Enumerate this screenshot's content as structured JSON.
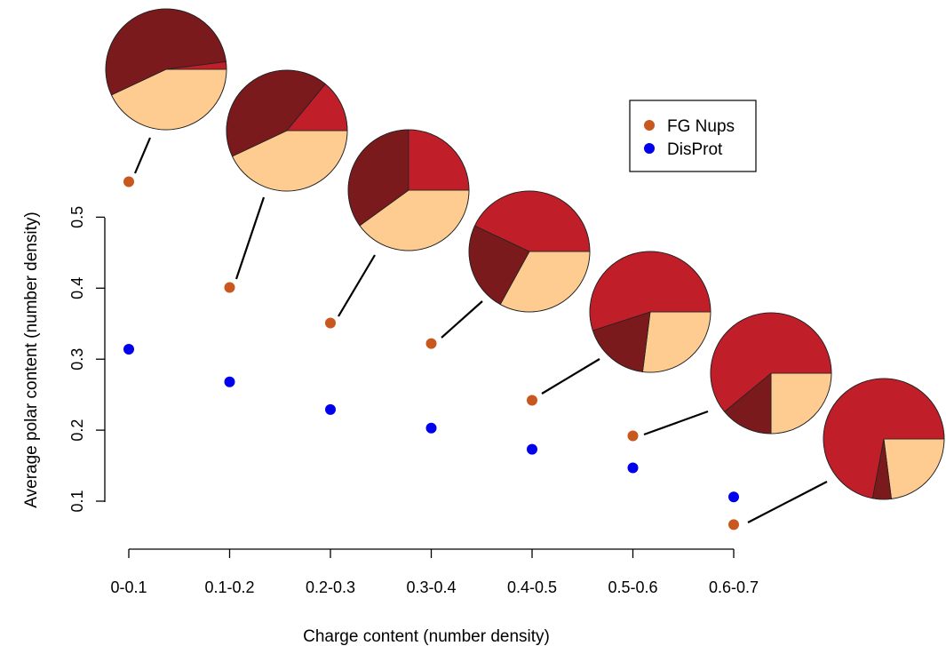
{
  "chart_data": {
    "type": "scatter",
    "title": "",
    "xlabel": "Charge content (number density)",
    "ylabel": "Average polar content (number density)",
    "categories": [
      "0-0.1",
      "0.1-0.2",
      "0.2-0.3",
      "0.3-0.4",
      "0.4-0.5",
      "0.5-0.6",
      "0.6-0.7"
    ],
    "yticks": [
      0.1,
      0.2,
      0.3,
      0.4,
      0.5
    ],
    "ylim": [
      0.1,
      0.5
    ],
    "grid": false,
    "legend_position": "top-right",
    "series": [
      {
        "name": "FG Nups",
        "color": "#c8581e",
        "values": [
          0.55,
          0.401,
          0.351,
          0.322,
          0.242,
          0.192,
          0.067
        ]
      },
      {
        "name": "DisProt",
        "color": "#0000ee",
        "values": [
          0.314,
          0.268,
          0.229,
          0.203,
          0.173,
          0.147,
          0.106
        ]
      }
    ],
    "pie_colors": [
      "#7b1a1c",
      "#c01f2a",
      "#fecb91"
    ],
    "pies": [
      {
        "category": "0-0.1",
        "fractions": [
          0.55,
          0.02,
          0.43
        ]
      },
      {
        "category": "0.1-0.2",
        "fractions": [
          0.43,
          0.14,
          0.43
        ]
      },
      {
        "category": "0.2-0.3",
        "fractions": [
          0.35,
          0.25,
          0.4
        ]
      },
      {
        "category": "0.3-0.4",
        "fractions": [
          0.24,
          0.43,
          0.33
        ]
      },
      {
        "category": "0.4-0.5",
        "fractions": [
          0.18,
          0.55,
          0.27
        ]
      },
      {
        "category": "0.5-0.6",
        "fractions": [
          0.14,
          0.61,
          0.25
        ]
      },
      {
        "category": "0.6-0.7",
        "fractions": [
          0.05,
          0.72,
          0.23
        ]
      }
    ]
  }
}
